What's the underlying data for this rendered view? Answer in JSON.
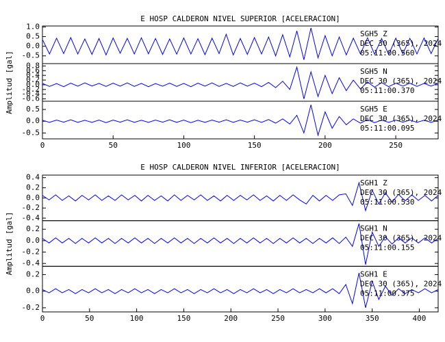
{
  "chart_data": [
    {
      "type": "line",
      "title": "E HOSP CALDERON NIVEL SUPERIOR [ACELERACION]",
      "ylabel": "Amplitud [gal]",
      "xlim": [
        0,
        280
      ],
      "xticks": [
        0,
        50,
        100,
        150,
        200,
        250
      ],
      "x": [
        0,
        5,
        10,
        15,
        20,
        25,
        30,
        35,
        40,
        45,
        50,
        55,
        60,
        65,
        70,
        75,
        80,
        85,
        90,
        95,
        100,
        105,
        110,
        115,
        120,
        125,
        130,
        135,
        140,
        145,
        150,
        155,
        160,
        165,
        170,
        175,
        180,
        185,
        190,
        195,
        200,
        205,
        210,
        215,
        220,
        225,
        230,
        235,
        240,
        245,
        250,
        255,
        260,
        265,
        270,
        275,
        280
      ],
      "panels": [
        {
          "color": "#0000ff",
          "ylim": [
            -0.9,
            1.05
          ],
          "yticks": [
            -0.5,
            {
              "value": 0,
              "label": "0.0"
            },
            0.5,
            {
              "value": 1,
              "label": "1.0"
            }
          ],
          "annotations": [
            "SGH5  Z",
            "DEC 30 (365), 2024",
            "05:11:00.560"
          ],
          "values": [
            0.35,
            -0.4,
            0.42,
            -0.38,
            0.45,
            -0.4,
            0.38,
            -0.42,
            0.4,
            -0.45,
            0.43,
            -0.36,
            0.41,
            -0.4,
            0.44,
            -0.39,
            0.4,
            -0.42,
            0.38,
            -0.41,
            0.43,
            -0.4,
            0.39,
            -0.44,
            0.42,
            -0.38,
            0.62,
            -0.45,
            0.4,
            -0.42,
            0.45,
            -0.4,
            0.48,
            -0.5,
            0.6,
            -0.55,
            0.8,
            -0.7,
            0.95,
            -0.6,
            0.55,
            -0.5,
            0.48,
            -0.45,
            0.42,
            -0.4,
            0.44,
            -0.41,
            0.4,
            -0.43,
            0.42,
            -0.39,
            0.41,
            -0.4,
            0.43,
            -0.38,
            0.4
          ]
        },
        {
          "color": "#0000ff",
          "ylim": [
            -0.7,
            0.9
          ],
          "yticks": [
            -0.6,
            -0.4,
            -0.2,
            {
              "value": 0,
              "label": "0.0"
            },
            0.2,
            0.4,
            0.6,
            0.8
          ],
          "annotations": [
            "SGH5  N",
            "DEC 30 (365), 2024",
            "05:11:00.370"
          ],
          "values": [
            0.06,
            -0.07,
            0.05,
            -0.08,
            0.07,
            -0.06,
            0.08,
            -0.05,
            0.06,
            -0.07,
            0.07,
            -0.06,
            0.08,
            -0.07,
            0.06,
            -0.08,
            0.05,
            -0.06,
            0.07,
            -0.07,
            0.06,
            -0.08,
            0.07,
            -0.06,
            0.08,
            -0.07,
            0.06,
            -0.07,
            0.08,
            -0.06,
            0.07,
            -0.08,
            0.1,
            -0.12,
            0.15,
            -0.2,
            0.75,
            -0.6,
            0.55,
            -0.5,
            0.4,
            -0.38,
            0.3,
            -0.25,
            0.2,
            -0.18,
            0.12,
            -0.1,
            0.09,
            -0.08,
            0.07,
            -0.06,
            0.07,
            -0.07,
            0.06,
            -0.06,
            0.07
          ]
        },
        {
          "color": "#0000ff",
          "ylim": [
            -0.75,
            0.85
          ],
          "yticks": [
            -0.5,
            {
              "value": 0,
              "label": "0.0"
            },
            0.5
          ],
          "annotations": [
            "SGH5  E",
            "DEC 30 (365), 2024",
            "05:11:00.095"
          ],
          "values": [
            0.04,
            -0.05,
            0.05,
            -0.04,
            0.06,
            -0.05,
            0.04,
            -0.05,
            0.05,
            -0.06,
            0.05,
            -0.04,
            0.06,
            -0.05,
            0.04,
            -0.05,
            0.05,
            -0.04,
            0.06,
            -0.05,
            0.05,
            -0.06,
            0.04,
            -0.05,
            0.05,
            -0.04,
            0.06,
            -0.05,
            0.05,
            -0.04,
            0.06,
            -0.05,
            0.07,
            -0.08,
            0.1,
            -0.12,
            0.25,
            -0.5,
            0.7,
            -0.6,
            0.4,
            -0.3,
            0.2,
            -0.15,
            0.1,
            -0.08,
            0.07,
            -0.06,
            0.05,
            -0.05,
            0.05,
            -0.04,
            0.05,
            -0.05,
            0.04,
            -0.05,
            0.05
          ]
        }
      ]
    },
    {
      "type": "line",
      "title": "E HOSP CALDERON NIVEL INFERIOR [ACELERACION]",
      "ylabel": "Amplitud [gal]",
      "xlim": [
        0,
        420
      ],
      "xticks": [
        0,
        50,
        100,
        150,
        200,
        250,
        300,
        350,
        400
      ],
      "x": [
        0,
        7,
        14,
        21,
        28,
        35,
        42,
        49,
        56,
        63,
        70,
        77,
        84,
        91,
        98,
        105,
        112,
        119,
        126,
        133,
        140,
        147,
        154,
        161,
        168,
        175,
        182,
        189,
        196,
        203,
        210,
        217,
        224,
        231,
        238,
        245,
        252,
        259,
        266,
        273,
        280,
        287,
        294,
        301,
        308,
        315,
        322,
        329,
        336,
        343,
        350,
        357,
        364,
        371,
        378,
        385,
        392,
        399,
        406,
        413,
        420
      ],
      "panels": [
        {
          "color": "#0000ff",
          "ylim": [
            -0.45,
            0.45
          ],
          "yticks": [
            -0.4,
            -0.2,
            {
              "value": 0,
              "label": "0.0"
            },
            0.2,
            0.4
          ],
          "annotations": [
            "SGH1  Z",
            "DEC 30 (365), 2024",
            "05:11:00.530"
          ],
          "values": [
            0.05,
            -0.04,
            0.06,
            -0.05,
            0.04,
            -0.06,
            0.05,
            -0.04,
            0.06,
            -0.05,
            0.04,
            -0.05,
            0.06,
            -0.04,
            0.05,
            -0.06,
            0.05,
            -0.05,
            0.04,
            -0.06,
            0.06,
            -0.05,
            0.05,
            -0.04,
            0.06,
            -0.05,
            0.04,
            -0.06,
            0.05,
            -0.05,
            0.05,
            -0.04,
            0.06,
            -0.05,
            0.04,
            -0.06,
            0.05,
            -0.05,
            0.06,
            -0.04,
            -0.12,
            0.05,
            -0.06,
            0.05,
            -0.05,
            0.06,
            0.08,
            -0.15,
            0.3,
            -0.25,
            0.15,
            -0.12,
            0.1,
            -0.08,
            0.07,
            -0.06,
            0.06,
            -0.05,
            0.05,
            -0.06,
            0.05
          ]
        },
        {
          "color": "#0000ff",
          "ylim": [
            -0.45,
            0.35
          ],
          "yticks": [
            -0.4,
            -0.2,
            {
              "value": 0,
              "label": "0.0"
            },
            0.2
          ],
          "annotations": [
            "SGH1  N",
            "DEC 30 (365), 2024",
            "05:11:00.155"
          ],
          "values": [
            0.04,
            -0.04,
            0.05,
            -0.04,
            0.04,
            -0.05,
            0.04,
            -0.04,
            0.05,
            -0.04,
            0.04,
            -0.05,
            0.04,
            -0.04,
            0.05,
            -0.04,
            0.04,
            -0.05,
            0.04,
            -0.04,
            0.05,
            -0.04,
            0.04,
            -0.05,
            0.04,
            -0.04,
            0.05,
            -0.04,
            0.04,
            -0.05,
            0.04,
            -0.04,
            0.05,
            -0.04,
            0.04,
            -0.05,
            0.04,
            -0.04,
            0.05,
            -0.04,
            0.04,
            -0.05,
            0.04,
            -0.04,
            0.05,
            -0.05,
            0.06,
            -0.1,
            0.3,
            -0.42,
            0.15,
            -0.1,
            0.07,
            -0.06,
            0.05,
            -0.04,
            0.05,
            -0.04,
            0.05,
            -0.04,
            0.04
          ]
        },
        {
          "color": "#0000ff",
          "ylim": [
            -0.25,
            0.3
          ],
          "yticks": [
            -0.2,
            {
              "value": 0,
              "label": "0.0"
            },
            0.2
          ],
          "annotations": [
            "SGH1  E",
            "DEC 30 (365), 2024",
            "05:11:00.375"
          ],
          "values": [
            0.02,
            -0.02,
            0.03,
            -0.02,
            0.02,
            -0.03,
            0.02,
            -0.02,
            0.03,
            -0.02,
            0.02,
            -0.03,
            0.02,
            -0.02,
            0.03,
            -0.02,
            0.02,
            -0.03,
            0.02,
            -0.02,
            0.03,
            -0.02,
            0.02,
            -0.03,
            0.02,
            -0.02,
            0.03,
            -0.02,
            0.02,
            -0.03,
            0.02,
            -0.02,
            0.03,
            -0.02,
            0.02,
            -0.03,
            0.02,
            -0.02,
            0.03,
            -0.02,
            0.02,
            -0.02,
            0.03,
            -0.02,
            0.03,
            -0.03,
            0.08,
            -0.15,
            0.22,
            -0.2,
            0.12,
            -0.1,
            0.06,
            -0.05,
            0.03,
            -0.03,
            0.02,
            -0.02,
            0.03,
            -0.02,
            0.02
          ]
        }
      ]
    }
  ]
}
